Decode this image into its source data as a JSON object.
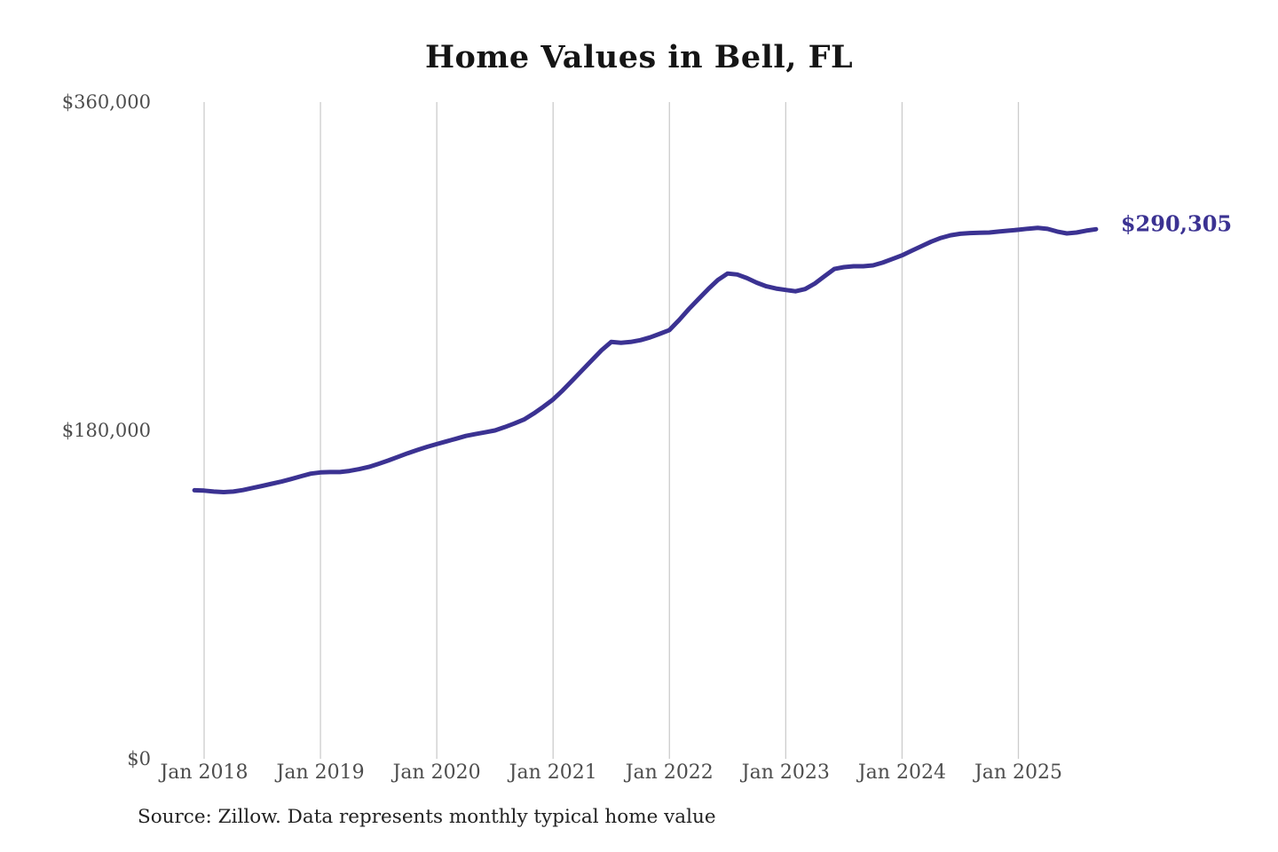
{
  "chart": {
    "title": "Home Values in Bell, FL",
    "end_label": "$290,305",
    "source": "Source: Zillow. Data represents monthly typical home value"
  },
  "colors": {
    "line": "#3b3292",
    "grid": "#cccccc",
    "tick_text": "#4d4d4d",
    "title_text": "#151515",
    "end_label_text": "#3b3292"
  },
  "chart_data": {
    "type": "line",
    "title": "Home Values in Bell, FL",
    "xlabel": "",
    "ylabel": "",
    "ylim": [
      0,
      360000
    ],
    "y_ticks": [
      0,
      180000,
      360000
    ],
    "y_tick_labels": [
      "$0",
      "$180,000",
      "$360,000"
    ],
    "x_tick_labels": [
      "Jan 2018",
      "Jan 2019",
      "Jan 2020",
      "Jan 2021",
      "Jan 2022",
      "Jan 2023",
      "Jan 2024",
      "Jan 2025"
    ],
    "grid": "vertical-only",
    "legend": "none",
    "end_annotation": "$290,305",
    "source": "Source: Zillow. Data represents monthly typical home value",
    "series_name": "Typical home value (monthly)",
    "months": [
      "2017-12",
      "2018-01",
      "2018-02",
      "2018-03",
      "2018-04",
      "2018-05",
      "2018-06",
      "2018-07",
      "2018-08",
      "2018-09",
      "2018-10",
      "2018-11",
      "2018-12",
      "2019-01",
      "2019-02",
      "2019-03",
      "2019-04",
      "2019-05",
      "2019-06",
      "2019-07",
      "2019-08",
      "2019-09",
      "2019-10",
      "2019-11",
      "2019-12",
      "2020-01",
      "2020-02",
      "2020-03",
      "2020-04",
      "2020-05",
      "2020-06",
      "2020-07",
      "2020-08",
      "2020-09",
      "2020-10",
      "2020-11",
      "2020-12",
      "2021-01",
      "2021-02",
      "2021-03",
      "2021-04",
      "2021-05",
      "2021-06",
      "2021-07",
      "2021-08",
      "2021-09",
      "2021-10",
      "2021-11",
      "2021-12",
      "2022-01",
      "2022-02",
      "2022-03",
      "2022-04",
      "2022-05",
      "2022-06",
      "2022-07",
      "2022-08",
      "2022-09",
      "2022-10",
      "2022-11",
      "2022-12",
      "2023-01",
      "2023-02",
      "2023-03",
      "2023-04",
      "2023-05",
      "2023-06",
      "2023-07",
      "2023-08",
      "2023-09",
      "2023-10",
      "2023-11",
      "2023-12",
      "2024-01",
      "2024-02",
      "2024-03",
      "2024-04",
      "2024-05",
      "2024-06",
      "2024-07",
      "2024-08",
      "2024-09",
      "2024-10",
      "2024-11",
      "2024-12",
      "2025-01",
      "2025-02",
      "2025-03",
      "2025-04",
      "2025-05",
      "2025-06",
      "2025-07",
      "2025-08",
      "2025-09"
    ],
    "values": [
      147200,
      147000,
      146500,
      146200,
      146500,
      147300,
      148500,
      149600,
      150800,
      152000,
      153400,
      154900,
      156300,
      157000,
      157200,
      157200,
      157800,
      158800,
      160000,
      161700,
      163500,
      165500,
      167500,
      169300,
      171000,
      172500,
      174000,
      175500,
      177000,
      178000,
      179000,
      180000,
      181800,
      183800,
      186000,
      189300,
      193000,
      197000,
      202000,
      207500,
      213000,
      218500,
      224000,
      228500,
      228000,
      228500,
      229500,
      231000,
      233000,
      235000,
      240500,
      246500,
      252000,
      257500,
      262500,
      266000,
      265500,
      263500,
      261000,
      259000,
      257800,
      257000,
      256300,
      257500,
      260500,
      264500,
      268500,
      269500,
      270000,
      270000,
      270500,
      272000,
      274000,
      276000,
      278500,
      281000,
      283500,
      285500,
      287000,
      287800,
      288200,
      288400,
      288500,
      289000,
      289500,
      290000,
      290600,
      291000,
      290500,
      289000,
      288000,
      288500,
      289500,
      290305
    ]
  }
}
